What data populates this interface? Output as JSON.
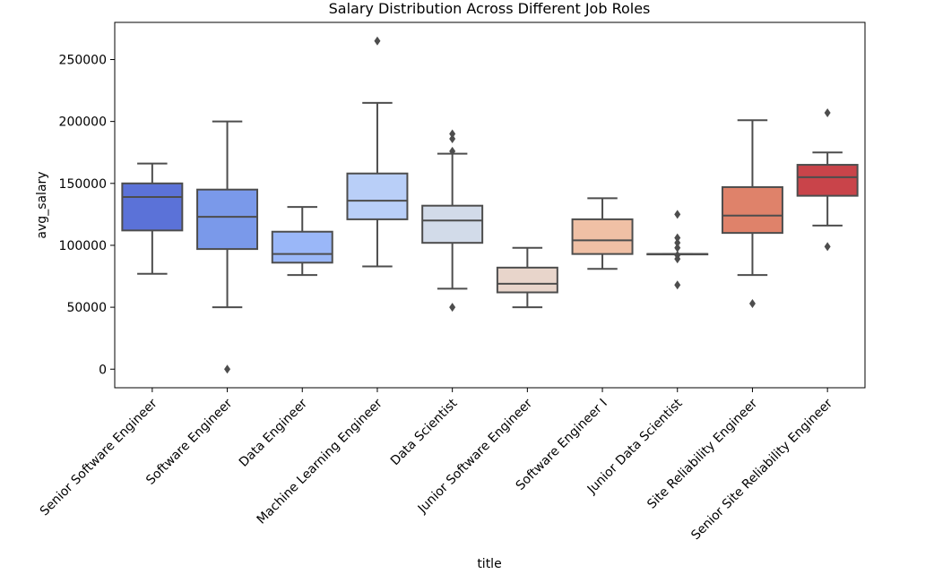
{
  "chart_data": {
    "type": "box",
    "title": "Salary Distribution Across Different Job Roles",
    "xlabel": "title",
    "ylabel": "avg_salary",
    "ylim": [
      -15000,
      280000
    ],
    "yticks": [
      0,
      50000,
      100000,
      150000,
      200000,
      250000
    ],
    "ytick_labels": [
      "0",
      "50000",
      "100000",
      "150000",
      "200000",
      "250000"
    ],
    "grid": false,
    "legend": "none",
    "categories": [
      "Senior Software Engineer",
      "Software Engineer",
      "Data Engineer",
      "Machine Learning Engineer",
      "Data Scientist",
      "Junior Software Engineer",
      "Software Engineer I",
      "Junior Data Scientist",
      "Site Reliability Engineer",
      "Senior Site Reliability Engineer"
    ],
    "boxes": [
      {
        "whisker_low": 77000,
        "q1": 112000,
        "median": 139000,
        "q3": 150000,
        "whisker_high": 166000,
        "outliers": [],
        "color": "#5b72d8"
      },
      {
        "whisker_low": 50000,
        "q1": 97000,
        "median": 123000,
        "q3": 145000,
        "whisker_high": 200000,
        "outliers": [
          0
        ],
        "color": "#7a99ea"
      },
      {
        "whisker_low": 76000,
        "q1": 86000,
        "median": 93000,
        "q3": 111000,
        "whisker_high": 131000,
        "outliers": [],
        "color": "#9ab7f8"
      },
      {
        "whisker_low": 83000,
        "q1": 121000,
        "median": 136000,
        "q3": 158000,
        "whisker_high": 215000,
        "outliers": [
          265000
        ],
        "color": "#b9cff8"
      },
      {
        "whisker_low": 65000,
        "q1": 102000,
        "median": 120000,
        "q3": 132000,
        "whisker_high": 174000,
        "outliers": [
          50000,
          176000,
          186000,
          190000
        ],
        "color": "#d2dbe9"
      },
      {
        "whisker_low": 50000,
        "q1": 62000,
        "median": 69000,
        "q3": 82000,
        "whisker_high": 98000,
        "outliers": [],
        "color": "#e8d5cb"
      },
      {
        "whisker_low": 81000,
        "q1": 93000,
        "median": 104000,
        "q3": 121000,
        "whisker_high": 138000,
        "outliers": [],
        "color": "#f0c0a5"
      },
      {
        "whisker_low": 93000,
        "q1": 93000,
        "median": 93000,
        "q3": 93000,
        "whisker_high": 93000,
        "outliers": [
          68000,
          89000,
          92000,
          98000,
          102000,
          106000,
          125000
        ],
        "color": "#eda587"
      },
      {
        "whisker_low": 76000,
        "q1": 110000,
        "median": 124000,
        "q3": 147000,
        "whisker_high": 201000,
        "outliers": [
          53000
        ],
        "color": "#df826a"
      },
      {
        "whisker_low": 116000,
        "q1": 140000,
        "median": 155000,
        "q3": 165000,
        "whisker_high": 175000,
        "outliers": [
          99000,
          207000
        ],
        "color": "#c9444a"
      }
    ]
  }
}
